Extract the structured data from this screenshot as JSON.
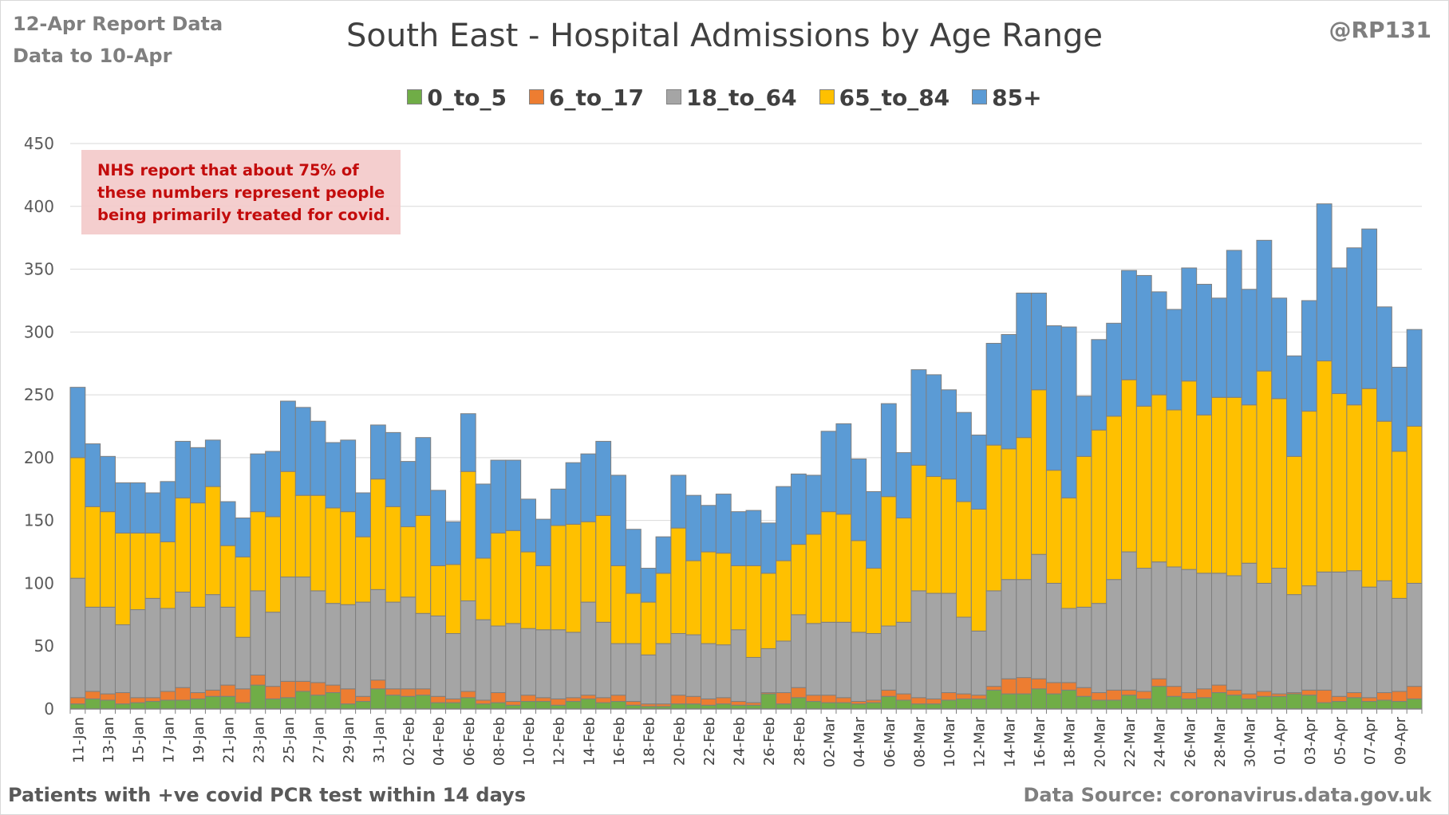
{
  "header": {
    "report_date": "12-Apr Report Data",
    "data_to": "Data to 10-Apr",
    "handle": "@RP131"
  },
  "note": "NHS report that about 75% of these numbers represent people being primarily treated for covid.",
  "footer": {
    "left": "Patients with  +ve covid PCR test within 14 days",
    "right": "Data Source: coronavirus.data.gov.uk"
  },
  "colors": {
    "0_to_5": "#70ad47",
    "6_to_17": "#ed7d31",
    "18_to_64": "#a5a5a5",
    "65_to_84": "#ffc000",
    "85+": "#5b9bd5",
    "gridline": "#d9d9d9",
    "bar_border": "#7f7f7f"
  },
  "chart_data": {
    "type": "bar",
    "stacked": true,
    "title": "South East - Hospital Admissions by Age Range",
    "xlabel": "",
    "ylabel": "",
    "ylim": [
      0,
      450
    ],
    "yticks": [
      0,
      50,
      100,
      150,
      200,
      250,
      300,
      350,
      400,
      450
    ],
    "grid": true,
    "legend_position": "top",
    "x_tick_labels": [
      "11-Jan",
      "13-Jan",
      "15-Jan",
      "17-Jan",
      "19-Jan",
      "21-Jan",
      "23-Jan",
      "25-Jan",
      "27-Jan",
      "29-Jan",
      "31-Jan",
      "02-Feb",
      "04-Feb",
      "06-Feb",
      "08-Feb",
      "10-Feb",
      "12-Feb",
      "14-Feb",
      "16-Feb",
      "18-Feb",
      "20-Feb",
      "22-Feb",
      "24-Feb",
      "26-Feb",
      "28-Feb",
      "02-Mar",
      "04-Mar",
      "06-Mar",
      "08-Mar",
      "10-Mar",
      "12-Mar",
      "14-Mar",
      "16-Mar",
      "18-Mar",
      "20-Mar",
      "22-Mar",
      "24-Mar",
      "26-Mar",
      "28-Mar",
      "30-Mar",
      "01-Apr",
      "03-Apr",
      "05-Apr",
      "07-Apr",
      "09-Apr"
    ],
    "categories": [
      "11-Jan",
      "12-Jan",
      "13-Jan",
      "14-Jan",
      "15-Jan",
      "16-Jan",
      "17-Jan",
      "18-Jan",
      "19-Jan",
      "20-Jan",
      "21-Jan",
      "22-Jan",
      "23-Jan",
      "24-Jan",
      "25-Jan",
      "26-Jan",
      "27-Jan",
      "28-Jan",
      "29-Jan",
      "30-Jan",
      "31-Jan",
      "01-Feb",
      "02-Feb",
      "03-Feb",
      "04-Feb",
      "05-Feb",
      "06-Feb",
      "07-Feb",
      "08-Feb",
      "09-Feb",
      "10-Feb",
      "11-Feb",
      "12-Feb",
      "13-Feb",
      "14-Feb",
      "15-Feb",
      "16-Feb",
      "17-Feb",
      "18-Feb",
      "19-Feb",
      "20-Feb",
      "21-Feb",
      "22-Feb",
      "23-Feb",
      "24-Feb",
      "25-Feb",
      "26-Feb",
      "27-Feb",
      "28-Feb",
      "01-Mar",
      "02-Mar",
      "03-Mar",
      "04-Mar",
      "05-Mar",
      "06-Mar",
      "07-Mar",
      "08-Mar",
      "09-Mar",
      "10-Mar",
      "11-Mar",
      "12-Mar",
      "13-Mar",
      "14-Mar",
      "15-Mar",
      "16-Mar",
      "17-Mar",
      "18-Mar",
      "19-Mar",
      "20-Mar",
      "21-Mar",
      "22-Mar",
      "23-Mar",
      "24-Mar",
      "25-Mar",
      "26-Mar",
      "27-Mar",
      "28-Mar",
      "29-Mar",
      "30-Mar",
      "31-Mar",
      "01-Apr",
      "02-Apr",
      "03-Apr",
      "04-Apr",
      "05-Apr",
      "06-Apr",
      "07-Apr",
      "08-Apr",
      "09-Apr",
      "10-Apr"
    ],
    "series": [
      {
        "name": "0_to_5",
        "values": [
          4,
          8,
          7,
          4,
          5,
          6,
          7,
          7,
          8,
          10,
          10,
          5,
          19,
          8,
          9,
          14,
          11,
          13,
          4,
          6,
          16,
          11,
          10,
          11,
          5,
          5,
          9,
          4,
          5,
          3,
          6,
          6,
          3,
          6,
          8,
          5,
          6,
          3,
          2,
          2,
          4,
          4,
          3,
          4,
          3,
          3,
          12,
          4,
          9,
          6,
          5,
          5,
          4,
          5,
          10,
          7,
          4,
          4,
          7,
          8,
          8,
          15,
          12,
          12,
          16,
          12,
          15,
          10,
          7,
          7,
          11,
          8,
          18,
          10,
          8,
          9,
          13,
          11,
          8,
          10,
          10,
          12,
          11,
          5,
          6,
          9,
          6,
          7,
          6,
          8
        ]
      },
      {
        "name": "6_to_17",
        "values": [
          5,
          6,
          5,
          9,
          4,
          3,
          7,
          10,
          5,
          5,
          9,
          11,
          8,
          10,
          13,
          8,
          10,
          6,
          12,
          4,
          7,
          5,
          6,
          5,
          5,
          3,
          5,
          3,
          8,
          3,
          5,
          3,
          5,
          3,
          3,
          4,
          5,
          3,
          2,
          2,
          7,
          6,
          5,
          5,
          3,
          2,
          1,
          9,
          8,
          5,
          6,
          4,
          2,
          2,
          5,
          5,
          5,
          4,
          6,
          4,
          3,
          3,
          12,
          13,
          8,
          9,
          6,
          7,
          6,
          8,
          4,
          6,
          6,
          8,
          5,
          7,
          6,
          4,
          4,
          4,
          2,
          1,
          4,
          10,
          4,
          4,
          3,
          6,
          8,
          10
        ]
      },
      {
        "name": "18_to_64",
        "values": [
          95,
          67,
          69,
          54,
          70,
          79,
          66,
          76,
          68,
          76,
          62,
          41,
          67,
          59,
          83,
          83,
          73,
          65,
          67,
          75,
          72,
          69,
          73,
          60,
          64,
          52,
          72,
          64,
          53,
          62,
          53,
          54,
          55,
          52,
          74,
          60,
          41,
          46,
          39,
          48,
          49,
          49,
          44,
          42,
          57,
          36,
          35,
          41,
          58,
          57,
          58,
          60,
          55,
          53,
          51,
          57,
          85,
          84,
          79,
          61,
          51,
          76,
          79,
          78,
          99,
          79,
          59,
          64,
          71,
          88,
          110,
          98,
          93,
          95,
          98,
          92,
          89,
          91,
          104,
          86,
          100,
          78,
          83,
          94,
          99,
          97,
          88,
          89,
          74,
          82
        ]
      },
      {
        "name": "65_to_84",
        "values": [
          96,
          80,
          76,
          73,
          61,
          52,
          53,
          75,
          83,
          86,
          49,
          64,
          63,
          76,
          84,
          65,
          76,
          76,
          74,
          52,
          88,
          76,
          56,
          78,
          40,
          55,
          103,
          49,
          74,
          74,
          61,
          51,
          83,
          86,
          64,
          85,
          62,
          40,
          42,
          56,
          84,
          59,
          73,
          73,
          51,
          73,
          60,
          64,
          56,
          71,
          88,
          86,
          73,
          52,
          103,
          83,
          100,
          93,
          91,
          92,
          97,
          116,
          104,
          113,
          131,
          90,
          88,
          120,
          138,
          130,
          137,
          129,
          133,
          125,
          150,
          126,
          140,
          142,
          126,
          169,
          135,
          110,
          139,
          168,
          142,
          132,
          158,
          127,
          117,
          125
        ]
      },
      {
        "name": "85+",
        "values": [
          56,
          50,
          44,
          40,
          40,
          32,
          48,
          45,
          44,
          37,
          35,
          31,
          46,
          52,
          56,
          70,
          59,
          52,
          57,
          35,
          43,
          59,
          52,
          62,
          60,
          34,
          46,
          59,
          58,
          56,
          42,
          37,
          29,
          49,
          54,
          59,
          72,
          51,
          27,
          29,
          42,
          52,
          37,
          47,
          43,
          44,
          40,
          59,
          56,
          47,
          64,
          72,
          65,
          61,
          74,
          52,
          76,
          81,
          71,
          71,
          59,
          81,
          91,
          115,
          77,
          115,
          136,
          48,
          72,
          74,
          87,
          104,
          82,
          80,
          90,
          104,
          79,
          117,
          92,
          104,
          80,
          80,
          88,
          125,
          100,
          125,
          127,
          91,
          67,
          77
        ]
      }
    ]
  }
}
